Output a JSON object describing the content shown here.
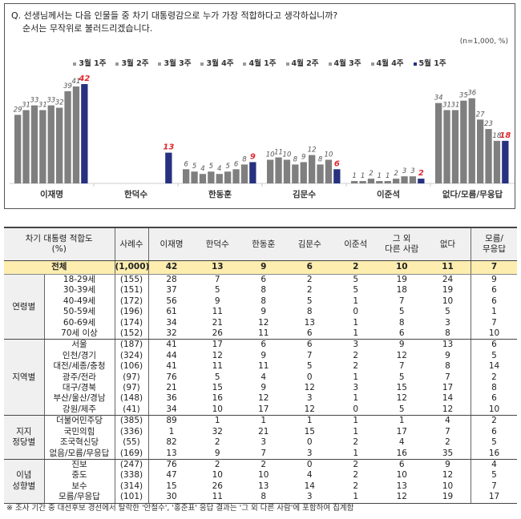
{
  "question": {
    "line1": "Q. 선생님께서는 다음 인물들 중 차기 대통령감으로 누가 가장 적합하다고 생각하십니까?",
    "line2": "순서는 무작위로 불러드리겠습니다.",
    "sample_note": "(n=1,000, %)"
  },
  "chart_data": {
    "type": "bar",
    "categories": [
      "이재명",
      "한덕수",
      "한동훈",
      "김문수",
      "이준석",
      "없다/모름/무응답"
    ],
    "series": [
      {
        "name": "3월 1주",
        "values": [
          29,
          null,
          6,
          10,
          1,
          34
        ]
      },
      {
        "name": "3월 2주",
        "values": [
          31,
          null,
          5,
          11,
          1,
          31
        ]
      },
      {
        "name": "3월 3주",
        "values": [
          33,
          null,
          4,
          10,
          2,
          31
        ]
      },
      {
        "name": "3월 4주",
        "values": [
          31,
          null,
          5,
          8,
          1,
          35
        ]
      },
      {
        "name": "4월 1주",
        "values": [
          33,
          null,
          4,
          9,
          1,
          36
        ]
      },
      {
        "name": "4월 2주",
        "values": [
          32,
          null,
          5,
          12,
          2,
          27
        ]
      },
      {
        "name": "4월 3주",
        "values": [
          39,
          null,
          6,
          8,
          3,
          23
        ]
      },
      {
        "name": "4월 4주",
        "values": [
          41,
          null,
          8,
          10,
          3,
          18
        ]
      },
      {
        "name": "5월 1주",
        "values": [
          42,
          13,
          9,
          6,
          2,
          18
        ]
      }
    ],
    "ylim": [
      0,
      45
    ],
    "grid": false,
    "legend": "top",
    "colors": {
      "past": "#7f7f7f",
      "current": "#27317f",
      "current_label": "#e0282e",
      "past_label": "#555555"
    }
  },
  "table": {
    "header": {
      "title": "차기 대통령 적합도",
      "unit": "(%)",
      "columns": [
        "사례수",
        "이재명",
        "한덕수",
        "한동훈",
        "김문수",
        "이준석",
        "그 외\n다른 사람",
        "없다",
        "모름/\n무응답"
      ]
    },
    "total": {
      "label": "전체",
      "n": "(1,000)",
      "values": [
        "42",
        "13",
        "9",
        "6",
        "2",
        "10",
        "11",
        "7"
      ]
    },
    "groups": [
      {
        "label": "연령별",
        "rows": [
          {
            "label": "18-29세",
            "n": "(155)",
            "values": [
              "28",
              "7",
              "6",
              "2",
              "5",
              "19",
              "24",
              "9"
            ]
          },
          {
            "label": "30-39세",
            "n": "(151)",
            "values": [
              "37",
              "5",
              "8",
              "2",
              "5",
              "18",
              "19",
              "6"
            ]
          },
          {
            "label": "40-49세",
            "n": "(172)",
            "values": [
              "56",
              "9",
              "8",
              "5",
              "1",
              "7",
              "10",
              "6"
            ]
          },
          {
            "label": "50-59세",
            "n": "(196)",
            "values": [
              "61",
              "11",
              "9",
              "8",
              "0",
              "5",
              "5",
              "1"
            ]
          },
          {
            "label": "60-69세",
            "n": "(174)",
            "values": [
              "34",
              "21",
              "12",
              "13",
              "1",
              "8",
              "3",
              "7"
            ]
          },
          {
            "label": "70세 이상",
            "n": "(152)",
            "values": [
              "32",
              "26",
              "11",
              "6",
              "1",
              "6",
              "8",
              "10"
            ]
          }
        ]
      },
      {
        "label": "지역별",
        "rows": [
          {
            "label": "서울",
            "n": "(187)",
            "values": [
              "41",
              "17",
              "6",
              "6",
              "3",
              "9",
              "13",
              "6"
            ]
          },
          {
            "label": "인천/경기",
            "n": "(324)",
            "values": [
              "44",
              "12",
              "9",
              "7",
              "2",
              "12",
              "9",
              "5"
            ]
          },
          {
            "label": "대전/세종/충청",
            "n": "(106)",
            "values": [
              "41",
              "11",
              "11",
              "5",
              "2",
              "7",
              "8",
              "14"
            ]
          },
          {
            "label": "광주/전라",
            "n": "(97)",
            "values": [
              "76",
              "5",
              "4",
              "0",
              "1",
              "5",
              "7",
              "2"
            ]
          },
          {
            "label": "대구/경북",
            "n": "(97)",
            "values": [
              "21",
              "15",
              "9",
              "12",
              "3",
              "15",
              "17",
              "8"
            ]
          },
          {
            "label": "부산/울산/경남",
            "n": "(148)",
            "values": [
              "36",
              "16",
              "12",
              "3",
              "1",
              "12",
              "14",
              "6"
            ]
          },
          {
            "label": "강원/제주",
            "n": "(41)",
            "values": [
              "34",
              "10",
              "17",
              "12",
              "0",
              "5",
              "12",
              "10"
            ]
          }
        ]
      },
      {
        "label": "지지\n정당별",
        "rows": [
          {
            "label": "더불어민주당",
            "n": "(385)",
            "values": [
              "89",
              "1",
              "1",
              "1",
              "1",
              "1",
              "4",
              "2"
            ]
          },
          {
            "label": "국민의힘",
            "n": "(336)",
            "values": [
              "1",
              "32",
              "21",
              "15",
              "1",
              "17",
              "7",
              "6"
            ]
          },
          {
            "label": "조국혁신당",
            "n": "(55)",
            "values": [
              "82",
              "2",
              "3",
              "0",
              "2",
              "4",
              "2",
              "5"
            ]
          },
          {
            "label": "없음/모름/무응답",
            "n": "(169)",
            "values": [
              "13",
              "9",
              "7",
              "3",
              "1",
              "16",
              "35",
              "16"
            ]
          }
        ]
      },
      {
        "label": "이념\n성향별",
        "rows": [
          {
            "label": "진보",
            "n": "(247)",
            "values": [
              "76",
              "2",
              "2",
              "0",
              "2",
              "6",
              "9",
              "4"
            ]
          },
          {
            "label": "중도",
            "n": "(338)",
            "values": [
              "47",
              "10",
              "10",
              "4",
              "2",
              "10",
              "12",
              "5"
            ]
          },
          {
            "label": "보수",
            "n": "(314)",
            "values": [
              "15",
              "26",
              "13",
              "14",
              "2",
              "13",
              "10",
              "7"
            ]
          },
          {
            "label": "모름/무응답",
            "n": "(101)",
            "values": [
              "30",
              "11",
              "8",
              "3",
              "1",
              "12",
              "19",
              "17"
            ]
          }
        ]
      }
    ]
  },
  "footnote": "※ 조사 기간 중 대선후보 경선에서 탈락한 '안철수', '홍준표' 응답 결과는 '그 외 다른 사람'에 포함하여 집계함"
}
